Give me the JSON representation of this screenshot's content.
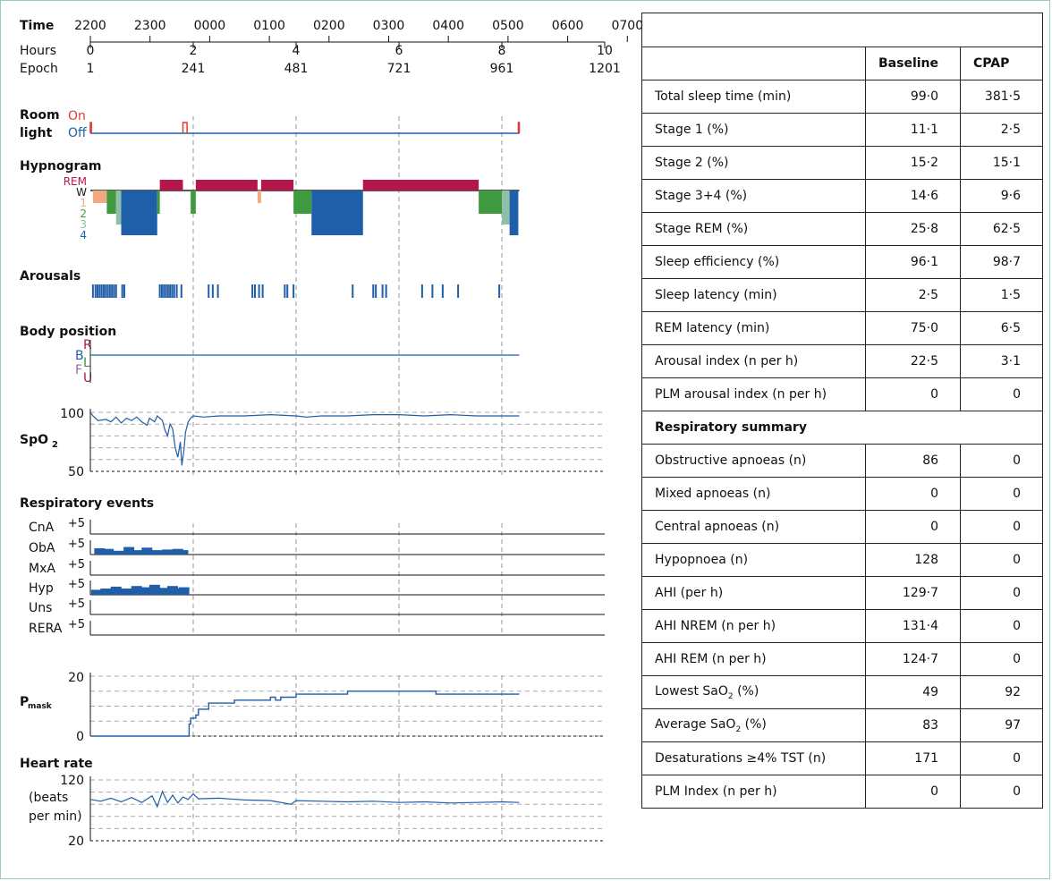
{
  "chart_data": {
    "type": "line",
    "time_axis": {
      "time_label": "Time",
      "hours_label": "Hours",
      "epoch_label": "Epoch",
      "clock_ticks": [
        "2200",
        "2300",
        "0000",
        "0100",
        "0200",
        "0300",
        "0400",
        "0500",
        "0600",
        "0700"
      ],
      "hour_ticks": [
        "0",
        "2",
        "4",
        "6",
        "8",
        "10"
      ],
      "epoch_ticks": [
        "1",
        "241",
        "481",
        "721",
        "961",
        "1201"
      ],
      "hours_range": [
        0,
        10
      ]
    },
    "room_light": {
      "title_line1": "Room",
      "title_line2": "light",
      "on_label": "On",
      "off_label": "Off",
      "color_on": "#e03c31",
      "color_off": "#1f5ea8",
      "on_intervals_hours": [
        [
          0,
          0.02
        ],
        [
          1.8,
          1.88
        ],
        [
          8.32,
          8.34
        ]
      ],
      "recording_end_hours": 8.34
    },
    "hypnogram": {
      "title": "Hypnogram",
      "stage_labels": [
        "REM",
        "W",
        "1",
        "2",
        "3",
        "4"
      ],
      "stage_colors": {
        "REM": "#b5174b",
        "W": "#1a1a1a",
        "1": "#f4a882",
        "2": "#3f9a3f",
        "3": "#8fbfa8",
        "4": "#1f5ea8"
      },
      "segments": [
        {
          "stage": "1",
          "start": 0.05,
          "end": 0.32
        },
        {
          "stage": "2",
          "start": 0.32,
          "end": 0.5
        },
        {
          "stage": "3",
          "start": 0.5,
          "end": 0.6
        },
        {
          "stage": "4",
          "start": 0.6,
          "end": 1.3
        },
        {
          "stage": "2",
          "start": 1.3,
          "end": 1.35
        },
        {
          "stage": "REM",
          "start": 1.35,
          "end": 1.8
        },
        {
          "stage": "2",
          "start": 1.95,
          "end": 2.05
        },
        {
          "stage": "REM",
          "start": 2.05,
          "end": 3.25
        },
        {
          "stage": "1",
          "start": 3.25,
          "end": 3.32
        },
        {
          "stage": "REM",
          "start": 3.32,
          "end": 3.95
        },
        {
          "stage": "2",
          "start": 3.95,
          "end": 4.3
        },
        {
          "stage": "4",
          "start": 4.3,
          "end": 5.3
        },
        {
          "stage": "REM",
          "start": 5.3,
          "end": 7.55
        },
        {
          "stage": "2",
          "start": 7.55,
          "end": 8.0
        },
        {
          "stage": "3",
          "start": 8.0,
          "end": 8.15
        },
        {
          "stage": "4",
          "start": 8.15,
          "end": 8.32
        }
      ]
    },
    "arousals": {
      "title": "Arousals",
      "event_hours": [
        0.05,
        0.1,
        0.14,
        0.18,
        0.22,
        0.26,
        0.3,
        0.34,
        0.38,
        0.42,
        0.46,
        0.5,
        0.62,
        0.66,
        1.35,
        1.39,
        1.43,
        1.47,
        1.51,
        1.55,
        1.59,
        1.63,
        1.68,
        1.77,
        2.3,
        2.38,
        2.48,
        3.15,
        3.2,
        3.28,
        3.35,
        3.78,
        3.83,
        3.95,
        5.1,
        5.5,
        5.55,
        5.68,
        5.75,
        6.45,
        6.65,
        6.85,
        7.15,
        7.95
      ]
    },
    "body_position": {
      "title": "Body position",
      "labels": [
        "R",
        "B",
        "L",
        "F",
        "U"
      ],
      "label_colors": [
        "#b5174b",
        "#1f5ea8",
        "#3f9a3f",
        "#8e6bb8",
        "#b5174b"
      ],
      "position": "B"
    },
    "spo2": {
      "title": "SpO",
      "title_sub": "2",
      "ylim": [
        50,
        100
      ],
      "y_ticks": [
        "100",
        "50"
      ],
      "points": [
        [
          0,
          100
        ],
        [
          0.05,
          97
        ],
        [
          0.15,
          93
        ],
        [
          0.3,
          94
        ],
        [
          0.4,
          92
        ],
        [
          0.5,
          96
        ],
        [
          0.6,
          91
        ],
        [
          0.7,
          95
        ],
        [
          0.8,
          93
        ],
        [
          0.9,
          96
        ],
        [
          1.0,
          92
        ],
        [
          1.1,
          89
        ],
        [
          1.15,
          95
        ],
        [
          1.25,
          92
        ],
        [
          1.3,
          97
        ],
        [
          1.4,
          93
        ],
        [
          1.45,
          85
        ],
        [
          1.5,
          80
        ],
        [
          1.55,
          90
        ],
        [
          1.6,
          86
        ],
        [
          1.65,
          70
        ],
        [
          1.7,
          62
        ],
        [
          1.75,
          75
        ],
        [
          1.78,
          55
        ],
        [
          1.82,
          68
        ],
        [
          1.85,
          83
        ],
        [
          1.9,
          92
        ],
        [
          1.95,
          95
        ],
        [
          2.0,
          97
        ],
        [
          2.2,
          96
        ],
        [
          2.5,
          97
        ],
        [
          3.0,
          97
        ],
        [
          3.5,
          98
        ],
        [
          4.0,
          97
        ],
        [
          4.2,
          96
        ],
        [
          4.5,
          97
        ],
        [
          5.0,
          97
        ],
        [
          5.5,
          98
        ],
        [
          6.0,
          98
        ],
        [
          6.5,
          97
        ],
        [
          7.0,
          98
        ],
        [
          7.5,
          97
        ],
        [
          8.0,
          97
        ],
        [
          8.34,
          97
        ]
      ]
    },
    "respiratory_events": {
      "title": "Respiratory events",
      "scale_label": "+5",
      "channels": [
        {
          "name": "CnA",
          "events": []
        },
        {
          "name": "ObA",
          "events": [
            [
              0.18,
              0.5
            ],
            [
              0.35,
              0.45
            ],
            [
              0.55,
              0.3
            ],
            [
              0.75,
              0.6
            ],
            [
              0.95,
              0.35
            ],
            [
              1.1,
              0.55
            ],
            [
              1.3,
              0.35
            ],
            [
              1.5,
              0.4
            ],
            [
              1.7,
              0.45
            ],
            [
              1.8,
              0.35
            ]
          ]
        },
        {
          "name": "MxA",
          "events": []
        },
        {
          "name": "Hyp",
          "events": [
            [
              0.12,
              0.4
            ],
            [
              0.3,
              0.5
            ],
            [
              0.5,
              0.65
            ],
            [
              0.7,
              0.5
            ],
            [
              0.9,
              0.7
            ],
            [
              1.05,
              0.6
            ],
            [
              1.25,
              0.8
            ],
            [
              1.45,
              0.55
            ],
            [
              1.6,
              0.7
            ],
            [
              1.75,
              0.5
            ],
            [
              1.82,
              0.6
            ]
          ]
        },
        {
          "name": "Uns",
          "events": []
        },
        {
          "name": "RERA",
          "events": []
        }
      ]
    },
    "pmask": {
      "title": "P",
      "title_sub": "mask",
      "ylim": [
        0,
        20
      ],
      "y_ticks": [
        "20",
        "0"
      ],
      "points": [
        [
          0,
          0
        ],
        [
          1.9,
          0
        ],
        [
          1.92,
          4
        ],
        [
          1.95,
          6
        ],
        [
          2.05,
          7
        ],
        [
          2.1,
          9
        ],
        [
          2.3,
          11
        ],
        [
          2.8,
          12
        ],
        [
          3.5,
          13
        ],
        [
          3.6,
          12
        ],
        [
          3.7,
          13
        ],
        [
          4.0,
          14
        ],
        [
          4.5,
          14
        ],
        [
          5.0,
          15
        ],
        [
          6.0,
          15
        ],
        [
          6.7,
          15
        ],
        [
          6.72,
          14
        ],
        [
          8.34,
          14
        ]
      ]
    },
    "heart_rate": {
      "title": "Heart rate",
      "units_line1": "(beats",
      "units_line2": "per min)",
      "ylim": [
        20,
        120
      ],
      "y_ticks": [
        "120",
        "20"
      ],
      "points": [
        [
          0,
          88
        ],
        [
          0.2,
          85
        ],
        [
          0.4,
          90
        ],
        [
          0.6,
          84
        ],
        [
          0.8,
          91
        ],
        [
          1.0,
          83
        ],
        [
          1.2,
          94
        ],
        [
          1.3,
          76
        ],
        [
          1.4,
          101
        ],
        [
          1.5,
          83
        ],
        [
          1.6,
          95
        ],
        [
          1.7,
          82
        ],
        [
          1.8,
          92
        ],
        [
          1.9,
          88
        ],
        [
          2.0,
          97
        ],
        [
          2.1,
          89
        ],
        [
          2.5,
          90
        ],
        [
          3.0,
          87
        ],
        [
          3.5,
          86
        ],
        [
          3.9,
          80
        ],
        [
          4.0,
          86
        ],
        [
          4.5,
          85
        ],
        [
          5.0,
          84
        ],
        [
          5.5,
          85
        ],
        [
          6.0,
          83
        ],
        [
          6.5,
          84
        ],
        [
          7.0,
          82
        ],
        [
          7.5,
          83
        ],
        [
          8.0,
          84
        ],
        [
          8.34,
          83
        ]
      ]
    }
  },
  "table": {
    "title": "",
    "columns": [
      "",
      "Baseline",
      "CPAP"
    ],
    "rows": [
      {
        "label": "Total sleep time (min)",
        "baseline": "99·0",
        "cpap": "381·5"
      },
      {
        "label": "Stage 1 (%)",
        "baseline": "11·1",
        "cpap": "2·5"
      },
      {
        "label": "Stage 2 (%)",
        "baseline": "15·2",
        "cpap": "15·1"
      },
      {
        "label": "Stage 3+4 (%)",
        "baseline": "14·6",
        "cpap": "9·6"
      },
      {
        "label": "Stage REM (%)",
        "baseline": "25·8",
        "cpap": "62·5"
      },
      {
        "label": "Sleep efficiency (%)",
        "baseline": "96·1",
        "cpap": "98·7"
      },
      {
        "label": "Sleep latency (min)",
        "baseline": "2·5",
        "cpap": "1·5"
      },
      {
        "label": "REM latency (min)",
        "baseline": "75·0",
        "cpap": "6·5"
      },
      {
        "label": "Arousal index (n per h)",
        "baseline": "22·5",
        "cpap": "3·1"
      },
      {
        "label": "PLM arousal index (n per h)",
        "baseline": "0",
        "cpap": "0"
      }
    ],
    "section_title": "Respiratory summary",
    "rows2": [
      {
        "label": "Obstructive apnoeas (n)",
        "baseline": "86",
        "cpap": "0"
      },
      {
        "label": "Mixed apnoeas (n)",
        "baseline": "0",
        "cpap": "0"
      },
      {
        "label": "Central apnoeas (n)",
        "baseline": "0",
        "cpap": "0"
      },
      {
        "label": "Hypopnoea (n)",
        "baseline": "128",
        "cpap": "0"
      },
      {
        "label": "AHI (per h)",
        "baseline": "129·7",
        "cpap": "0"
      },
      {
        "label": "AHI NREM (n per h)",
        "baseline": "131·4",
        "cpap": "0"
      },
      {
        "label": "AHI REM (n per h)",
        "baseline": "124·7",
        "cpap": "0"
      }
    ],
    "lowest_sao2": {
      "label_main": "Lowest SaO",
      "label_sub": "2",
      "label_tail": " (%)",
      "baseline": "49",
      "cpap": "92"
    },
    "average_sao2": {
      "label_main": "Average SaO",
      "label_sub": "2",
      "label_tail": " (%)",
      "baseline": "83",
      "cpap": "97"
    },
    "rows3": [
      {
        "label": "Desaturations ≥4% TST (n)",
        "baseline": "171",
        "cpap": "0"
      },
      {
        "label": "PLM Index (n per h)",
        "baseline": "0",
        "cpap": "0"
      }
    ]
  }
}
